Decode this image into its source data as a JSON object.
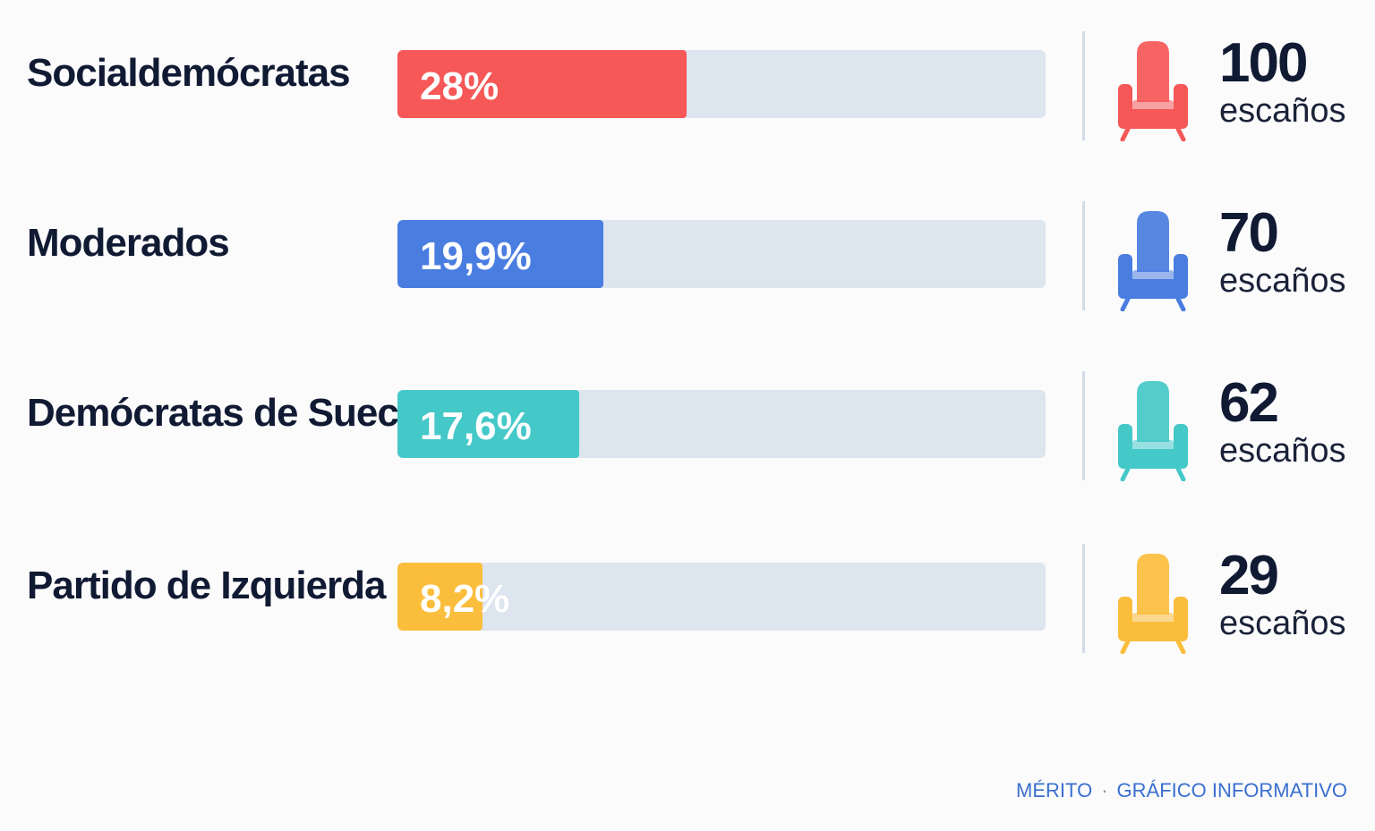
{
  "chart_data": {
    "type": "bar",
    "orientation": "horizontal",
    "categories": [
      "Socialdemócratas",
      "Moderados",
      "Demócratas de Suecia",
      "Partido de Izquierda"
    ],
    "series": [
      {
        "values": [
          28,
          19.9,
          17.6,
          8.2
        ],
        "labels": [
          "28%",
          "19,9%",
          "17,6%",
          "8,2%"
        ]
      }
    ],
    "xlim": [
      0,
      62.7
    ],
    "grid": false,
    "seats": [
      {
        "value": "100",
        "unit": "escaños"
      },
      {
        "value": "70",
        "unit": "escaños"
      },
      {
        "value": "62",
        "unit": "escaños"
      },
      {
        "value": "29",
        "unit": "escaños"
      }
    ],
    "colors": [
      "#f65757",
      "#4a7de0",
      "#45c8c8",
      "#fbbe3c"
    ],
    "track_color": "#dde5ee",
    "icon": "armchair-seat-icon"
  },
  "footer": {
    "brand": "MÉRITO",
    "separator": "·",
    "caption": "GRÁFICO INFORMATIVO"
  }
}
